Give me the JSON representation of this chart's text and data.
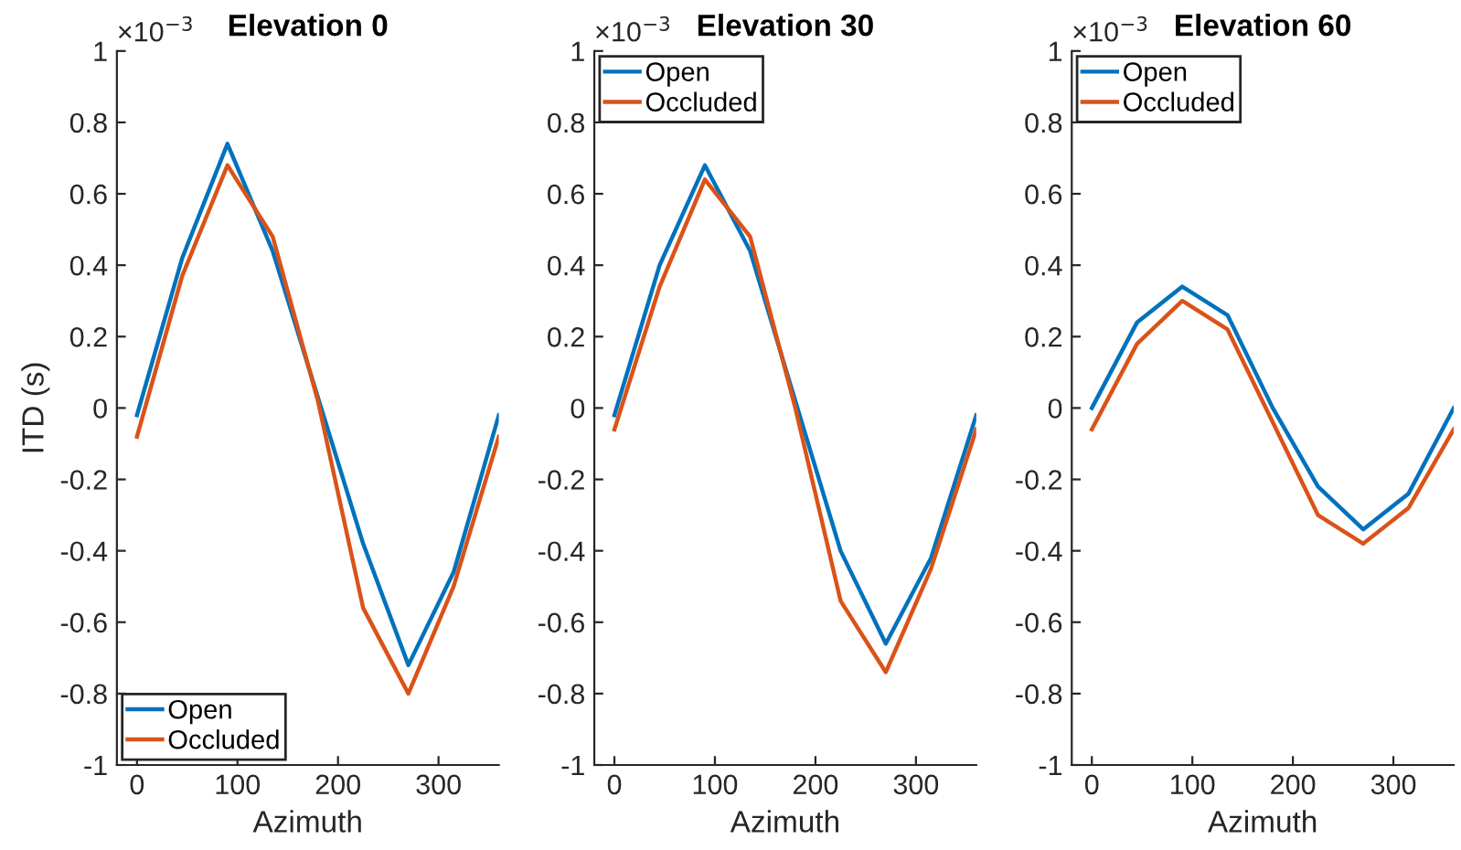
{
  "chart_data": [
    {
      "type": "line",
      "title": "Elevation 0",
      "xlabel": "Azimuth",
      "ylabel": "ITD (s)",
      "annotations": [
        "×10$^{−3}$"
      ],
      "x": [
        0,
        45,
        90,
        135,
        180,
        225,
        270,
        315,
        360
      ],
      "xlim": [
        -20,
        360
      ],
      "xticks": [
        0,
        100,
        200,
        300
      ],
      "ylim": [
        -1,
        1
      ],
      "yticks": [
        -1,
        -0.8,
        -0.6,
        -0.4,
        -0.2,
        0,
        0.2,
        0.4,
        0.6,
        0.8,
        1
      ],
      "grid": false,
      "legend": "bottom left",
      "marker": "none",
      "line_style": "solid",
      "series": [
        {
          "name": "Open",
          "color": "#0072bd",
          "values": [
            -0.02,
            0.42,
            0.74,
            0.44,
            0.03,
            -0.38,
            -0.72,
            -0.46,
            -0.02
          ]
        },
        {
          "name": "Occluded",
          "color": "#d95319",
          "values": [
            -0.08,
            0.37,
            0.68,
            0.48,
            0.02,
            -0.56,
            -0.8,
            -0.5,
            -0.08
          ]
        }
      ]
    },
    {
      "type": "line",
      "title": "Elevation 30",
      "xlabel": "Azimuth",
      "annotations": [
        "×10$^{−3}$"
      ],
      "x": [
        0,
        45,
        90,
        135,
        180,
        225,
        270,
        315,
        360
      ],
      "xlim": [
        -20,
        360
      ],
      "xticks": [
        0,
        100,
        200,
        300
      ],
      "ylim": [
        -1,
        1
      ],
      "yticks": [
        -1,
        -0.8,
        -0.6,
        -0.4,
        -0.2,
        0,
        0.2,
        0.4,
        0.6,
        0.8,
        1
      ],
      "grid": false,
      "legend": "top left",
      "marker": "none",
      "line_style": "solid",
      "series": [
        {
          "name": "Open",
          "color": "#0072bd",
          "values": [
            -0.02,
            0.4,
            0.68,
            0.44,
            0.02,
            -0.4,
            -0.66,
            -0.42,
            -0.02
          ]
        },
        {
          "name": "Occluded",
          "color": "#d95319",
          "values": [
            -0.06,
            0.34,
            0.64,
            0.48,
            0.0,
            -0.54,
            -0.74,
            -0.45,
            -0.06
          ]
        }
      ]
    },
    {
      "type": "line",
      "title": "Elevation 60",
      "xlabel": "Azimuth",
      "annotations": [
        "×10$^{−3}$"
      ],
      "x": [
        0,
        45,
        90,
        135,
        180,
        225,
        270,
        315,
        360
      ],
      "xlim": [
        -20,
        360
      ],
      "xticks": [
        0,
        100,
        200,
        300
      ],
      "ylim": [
        -1,
        1
      ],
      "yticks": [
        -1,
        -0.8,
        -0.6,
        -0.4,
        -0.2,
        0,
        0.2,
        0.4,
        0.6,
        0.8,
        1
      ],
      "grid": false,
      "legend": "top left",
      "marker": "none",
      "line_style": "solid",
      "series": [
        {
          "name": "Open",
          "color": "#0072bd",
          "values": [
            0.0,
            0.24,
            0.34,
            0.26,
            0.0,
            -0.22,
            -0.34,
            -0.24,
            0.0
          ]
        },
        {
          "name": "Occluded",
          "color": "#d95319",
          "values": [
            -0.06,
            0.18,
            0.3,
            0.22,
            -0.04,
            -0.3,
            -0.38,
            -0.28,
            -0.06
          ]
        }
      ]
    }
  ]
}
